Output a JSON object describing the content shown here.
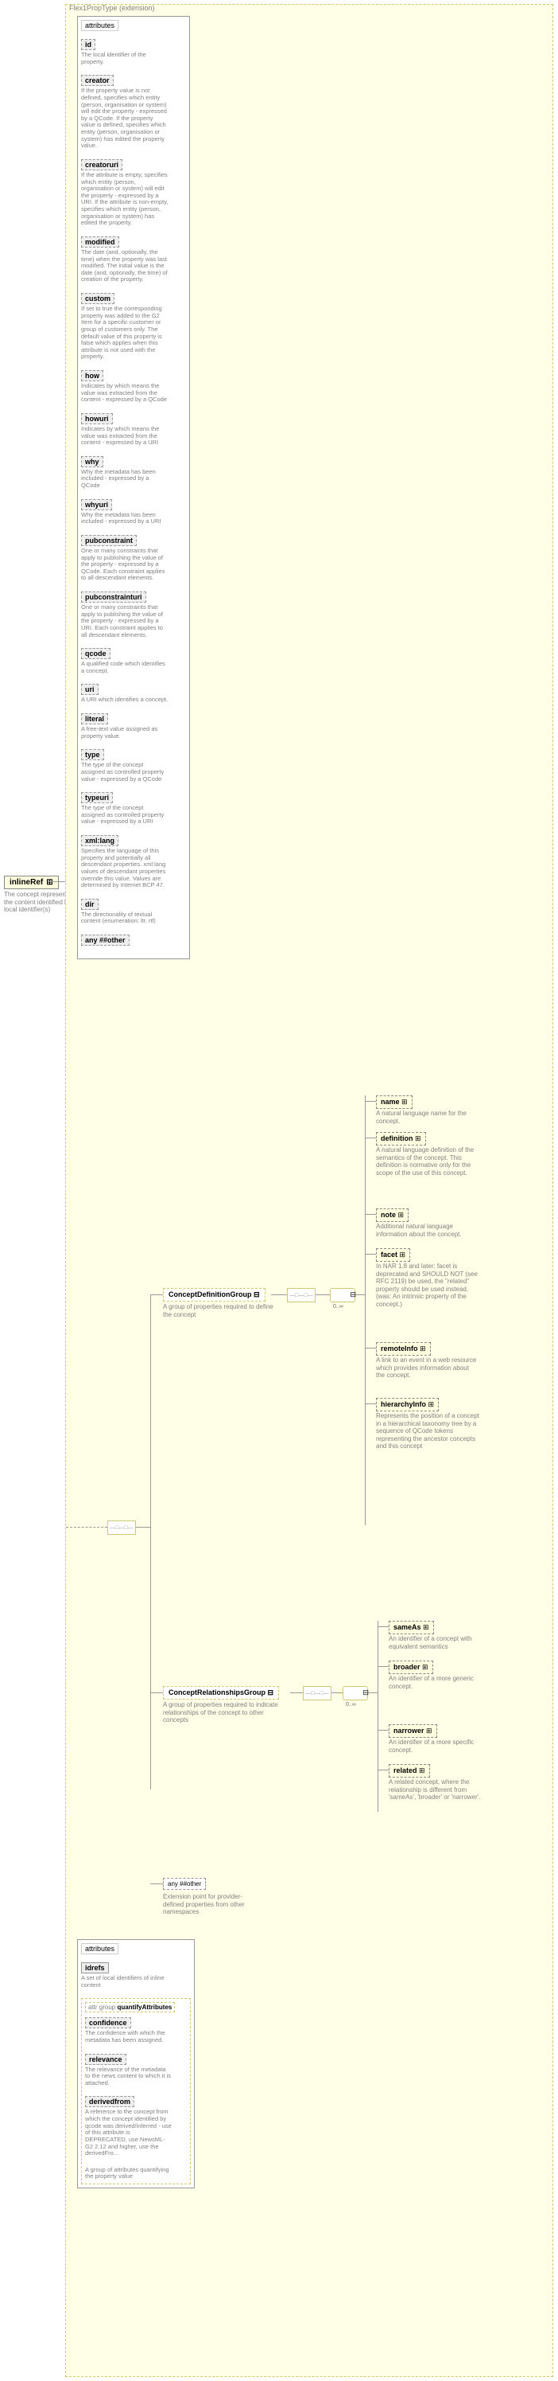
{
  "root": {
    "name": "inlineRef",
    "desc": "The concept represented by the content identified by the local identifier(s)"
  },
  "extension": {
    "label": "Flex1PropType (extension)"
  },
  "attrs1": {
    "header": "attributes",
    "items": [
      {
        "name": "id",
        "desc": "The local identifier of the property."
      },
      {
        "name": "creator",
        "desc": "If the property value is not defined, specifies which entity (person, organisation or system) will edit the property - expressed by a QCode. If the property value is defined, specifies which entity (person, organisation or system) has edited the property value."
      },
      {
        "name": "creatoruri",
        "desc": "If the attribute is empty, specifies which entity (person, organisation or system) will edit the property - expressed by a URI. If the attribute is non-empty, specifies which entity (person, organisation or system) has edited the property."
      },
      {
        "name": "modified",
        "desc": "The date (and, optionally, the time) when the property was last modified. The initial value is the date (and, optionally, the time) of creation of the property."
      },
      {
        "name": "custom",
        "desc": "If set to true the corresponding property was added to the G2 Item for a specific customer or group of customers only. The default value of this property is false which applies when this attribute is not used with the property."
      },
      {
        "name": "how",
        "desc": "Indicates by which means the value was extracted from the content - expressed by a QCode"
      },
      {
        "name": "howuri",
        "desc": "Indicates by which means the value was extracted from the content - expressed by a URI"
      },
      {
        "name": "why",
        "desc": "Why the metadata has been included - expressed by a QCode"
      },
      {
        "name": "whyuri",
        "desc": "Why the metadata has been included - expressed by a URI"
      },
      {
        "name": "pubconstraint",
        "desc": "One or many constraints that apply to publishing the value of the property - expressed by a QCode. Each constraint applies to all descendant elements."
      },
      {
        "name": "pubconstrainturi",
        "desc": "One or many constraints that apply to publishing the value of the property - expressed by a URI. Each constraint applies to all descendant elements."
      },
      {
        "name": "qcode",
        "desc": "A qualified code which identifies a concept."
      },
      {
        "name": "uri",
        "desc": "A URI which identifies a concept."
      },
      {
        "name": "literal",
        "desc": "A free-text value assigned as property value."
      },
      {
        "name": "type",
        "desc": "The type of the concept assigned as controlled property value - expressed by a QCode"
      },
      {
        "name": "typeuri",
        "desc": "The type of the concept assigned as controlled property value - expressed by a URI"
      },
      {
        "name": "xml:lang",
        "desc": "Specifies the language of this property and potentially all descendant properties. xml:lang values of descendant properties override this value. Values are determined by Internet BCP 47."
      },
      {
        "name": "dir",
        "desc": "The directionality of textual content (enumeration: ltr, rtl)"
      }
    ],
    "any": "any ##other"
  },
  "seq1": {
    "label": "—□—□—"
  },
  "group1": {
    "label": "ConceptDefinitionGroup",
    "desc": "A group of properties required to define the concept",
    "seq_label": "—□—□—",
    "multi": "0..∞",
    "children": [
      {
        "name": "name",
        "desc": "A natural language name for the concept."
      },
      {
        "name": "definition",
        "desc": "A natural language definition of the semantics of the concept. This definition is normative only for the scope of the use of this concept."
      },
      {
        "name": "note",
        "desc": "Additional natural language information about the concept."
      },
      {
        "name": "facet",
        "desc": "In NAR 1.8 and later: facet is deprecated and SHOULD NOT (see RFC 2119) be used, the \"related\" property should be used instead.(was: An intrinsic property of the concept.)"
      },
      {
        "name": "remoteInfo",
        "desc": "A link to an event in a web resource which provides information about the concept."
      },
      {
        "name": "hierarchyInfo",
        "desc": "Represents the position of a concept in a hierarchical taxonomy tree by a sequence of QCode tokens representing the ancestor concepts and this concept"
      }
    ]
  },
  "group2": {
    "label": "ConceptRelationshipsGroup",
    "desc": "A group of properties required to indicate relationships of the concept to other concepts",
    "seq_label": "—□—□—",
    "multi": "0..∞",
    "children": [
      {
        "name": "sameAs",
        "desc": "An identifier of a concept with equivalent semantics"
      },
      {
        "name": "broader",
        "desc": "An identifier of a more generic concept."
      },
      {
        "name": "narrower",
        "desc": "An identifier of a more specific concept."
      },
      {
        "name": "related",
        "desc": "A related concept, where the relationship is different from 'sameAs', 'broader' or 'narrower'."
      }
    ]
  },
  "any_ext": {
    "label": "any ##other",
    "desc": "Extension point for provider-defined properties from other namespaces"
  },
  "attrs2": {
    "header": "attributes",
    "idrefs": {
      "name": "idrefs",
      "desc": "A set of local identifiers of inline content"
    },
    "group_label": "attr group quantifyAttributes",
    "items": [
      {
        "name": "confidence",
        "desc": "The confidence with which the metadata has been assigned."
      },
      {
        "name": "relevance",
        "desc": "The relevance of the metadata to the news content to which it is attached."
      },
      {
        "name": "derivedfrom",
        "desc": "A reference to the concept from which the concept identified by qcode was derived/inferred - use of this attribute is DEPRECATED, use NewsML-G2 2.12 and higher, use the derivedFro..."
      }
    ],
    "group_desc": "A group of attributes quantifying the property value"
  },
  "colors": {
    "bg_ext": "#ffffe8",
    "border_ext": "#d4c96e",
    "node_bg": "#ffffe0",
    "desc_color": "#808080"
  }
}
